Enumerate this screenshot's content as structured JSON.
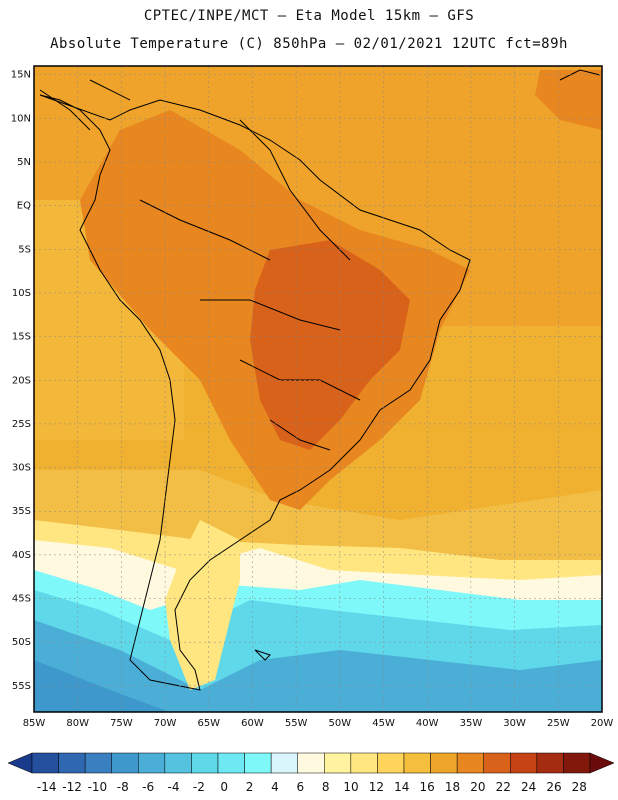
{
  "header": {
    "line1": "CPTEC/INPE/MCT –  Eta Model 15km – GFS",
    "line2": "Absolute Temperature (C) 850hPa – 02/01/2021 12UTC fct=89h"
  },
  "map": {
    "lat_labels": [
      "15N",
      "10N",
      "5N",
      "EQ",
      "5S",
      "10S",
      "15S",
      "20S",
      "25S",
      "30S",
      "35S",
      "40S",
      "45S",
      "50S",
      "55S"
    ],
    "lon_labels": [
      "85W",
      "80W",
      "75W",
      "70W",
      "65W",
      "60W",
      "55W",
      "50W",
      "45W",
      "40W",
      "35W",
      "30W",
      "25W",
      "20W"
    ],
    "lon_range": [
      -85,
      -20
    ],
    "lat_range": [
      -58,
      16
    ]
  },
  "colorbar": {
    "labels": [
      "-14",
      "-12",
      "-10",
      "-8",
      "-6",
      "-4",
      "-2",
      "0",
      "2",
      "4",
      "6",
      "8",
      "10",
      "12",
      "14",
      "16",
      "18",
      "20",
      "22",
      "24",
      "26",
      "28"
    ],
    "colors": [
      "#1a3a8c",
      "#24509e",
      "#2f68b0",
      "#3a80c0",
      "#3f98cc",
      "#4aaed6",
      "#55c3e0",
      "#5fd8ea",
      "#6ee8f2",
      "#7ff8fa",
      "#d8f6fb",
      "#fff9e0",
      "#fff3a0",
      "#ffe680",
      "#ffd45a",
      "#f5be3c",
      "#eea52a",
      "#e8861f",
      "#d9621a",
      "#c44214",
      "#a42c10",
      "#82180c",
      "#6b0a0a"
    ]
  },
  "colors": {
    "ocean_warm": "#eea52a",
    "land_hot": "#d9621a",
    "cold_south": "#55c3e0",
    "border": "#000000"
  }
}
